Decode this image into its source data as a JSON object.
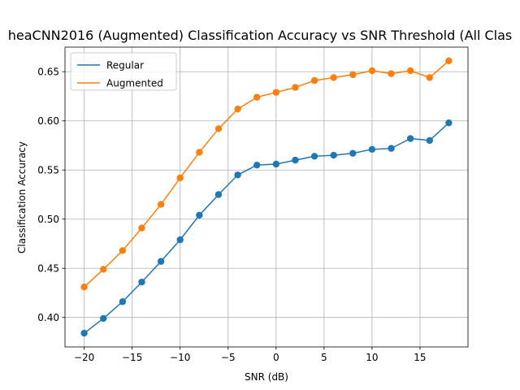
{
  "chart_data": {
    "type": "line",
    "title": "heaCNN2016 (Augmented) Classification Accuracy vs SNR Threshold (All Clas",
    "xlabel": "SNR (dB)",
    "ylabel": "Classification Accuracy",
    "xlim": [
      -22,
      20
    ],
    "ylim": [
      0.37,
      0.675
    ],
    "xticks": [
      -20,
      -15,
      -10,
      -5,
      0,
      5,
      10,
      15
    ],
    "xtick_labels": [
      "−20",
      "−15",
      "−10",
      "−5",
      "0",
      "5",
      "10",
      "15"
    ],
    "yticks": [
      0.4,
      0.45,
      0.5,
      0.55,
      0.6,
      0.65
    ],
    "ytick_labels": [
      "0.40",
      "0.45",
      "0.50",
      "0.55",
      "0.60",
      "0.65"
    ],
    "grid": true,
    "legend_position": "top-left",
    "x": [
      -20,
      -18,
      -16,
      -14,
      -12,
      -10,
      -8,
      -6,
      -4,
      -2,
      0,
      2,
      4,
      6,
      8,
      10,
      12,
      14,
      16,
      18
    ],
    "series": [
      {
        "name": "Regular",
        "color": "#1f77b4",
        "values": [
          0.384,
          0.399,
          0.416,
          0.436,
          0.457,
          0.479,
          0.504,
          0.525,
          0.545,
          0.555,
          0.556,
          0.56,
          0.564,
          0.565,
          0.567,
          0.571,
          0.572,
          0.582,
          0.58,
          0.598
        ]
      },
      {
        "name": "Augmented",
        "color": "#ff7f0e",
        "values": [
          0.431,
          0.449,
          0.468,
          0.491,
          0.515,
          0.542,
          0.568,
          0.592,
          0.612,
          0.624,
          0.629,
          0.634,
          0.641,
          0.644,
          0.647,
          0.651,
          0.648,
          0.651,
          0.644,
          0.661
        ]
      }
    ]
  }
}
